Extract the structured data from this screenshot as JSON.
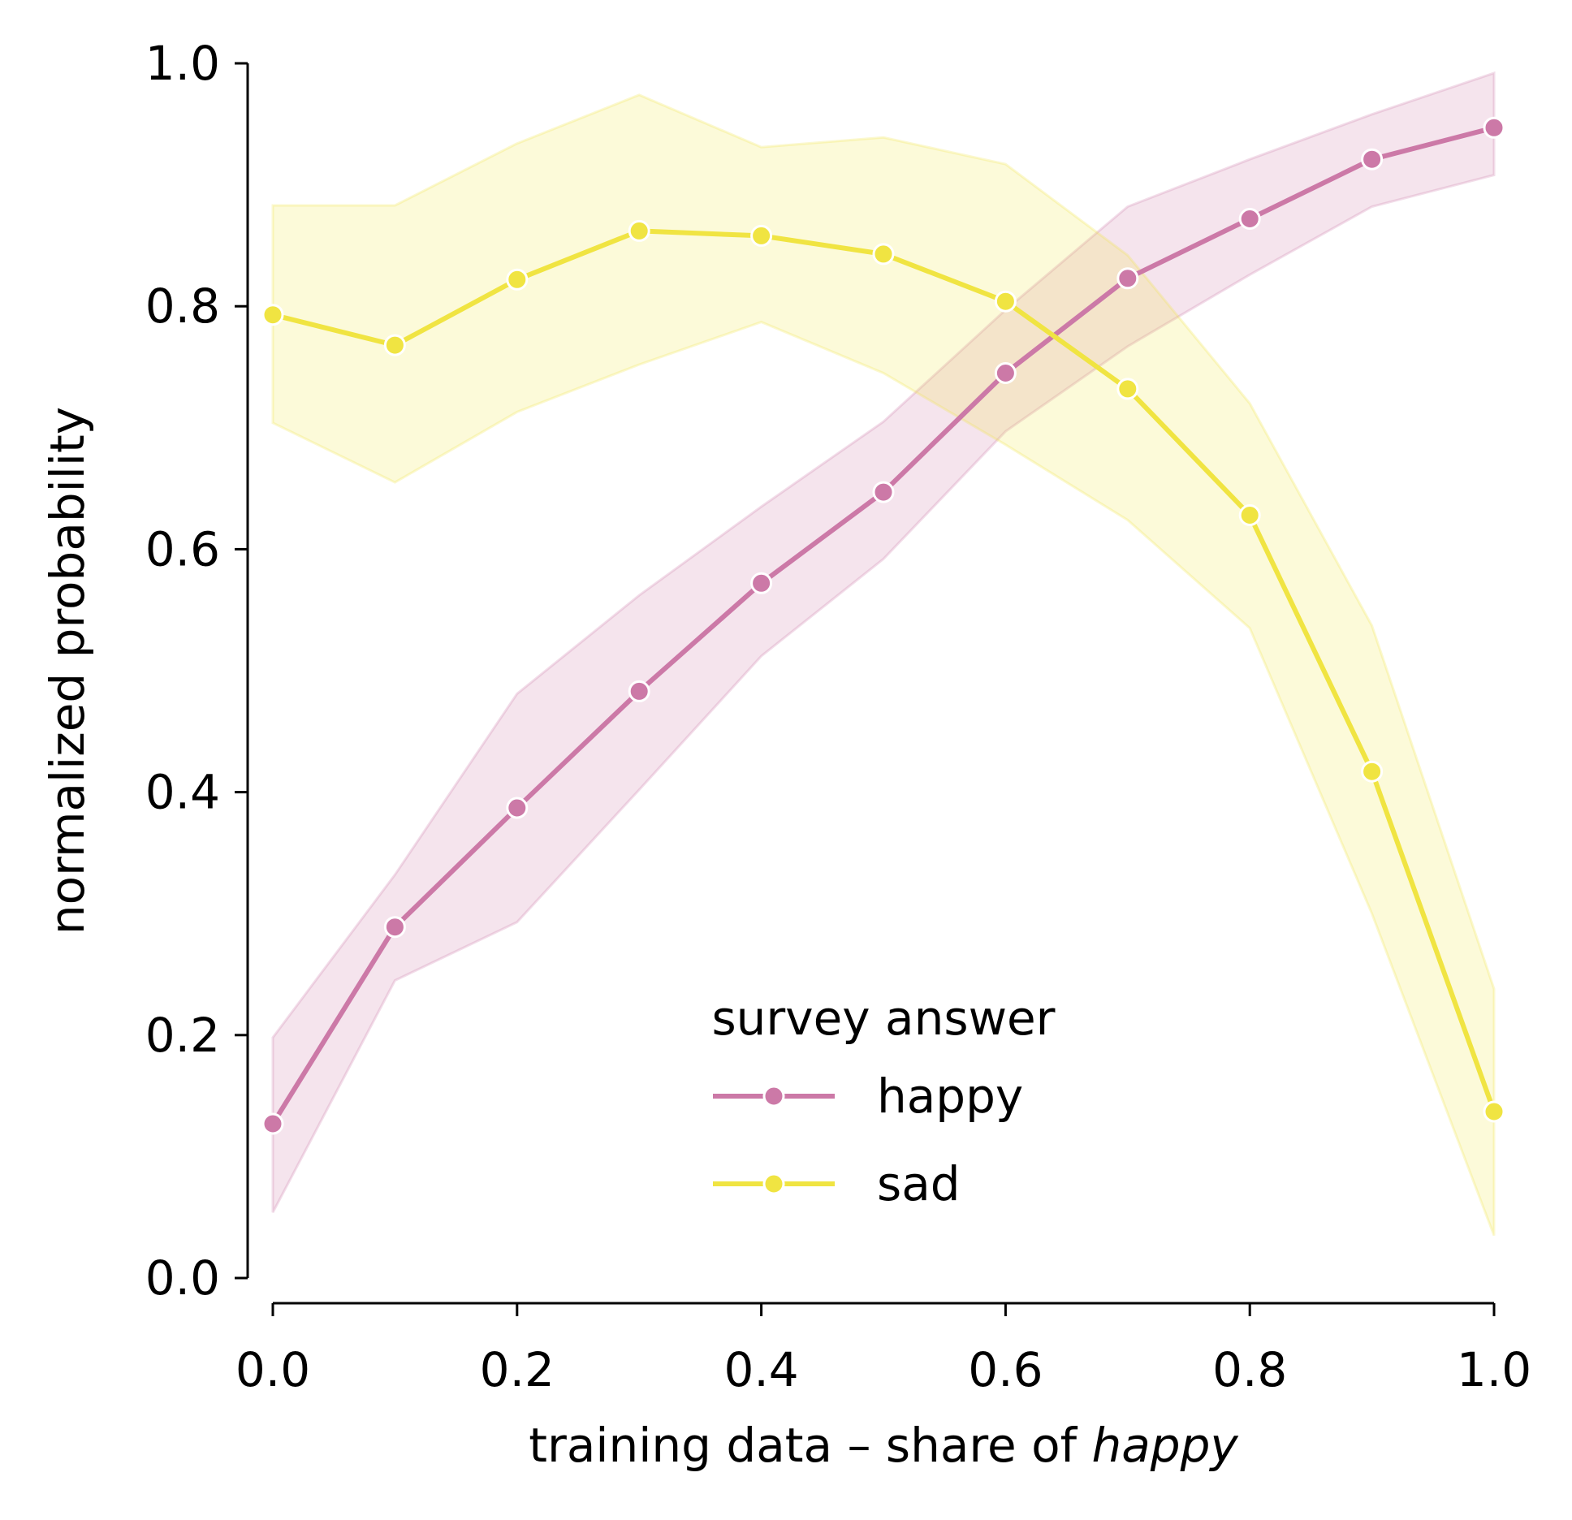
{
  "chart_data": {
    "type": "line",
    "title": "",
    "xlabel": "training data – share of",
    "xlabel_emphasis": "happy",
    "ylabel": "normalized probability",
    "xlim": [
      0.0,
      1.0
    ],
    "ylim": [
      0.0,
      1.0
    ],
    "grid": false,
    "x": [
      0.0,
      0.1,
      0.2,
      0.3,
      0.4,
      0.5,
      0.6,
      0.7,
      0.8,
      0.9,
      1.0
    ],
    "x_ticks": [
      "0.0",
      "0.2",
      "0.4",
      "0.6",
      "0.8",
      "1.0"
    ],
    "y_ticks": [
      "0.0",
      "0.2",
      "0.4",
      "0.6",
      "0.8",
      "1.0"
    ],
    "legend": {
      "title": "survey answer",
      "placement": "lower-center"
    },
    "series": [
      {
        "name": "happy",
        "color": "#cc79a7",
        "band_color": "#cc79a7",
        "values": [
          0.127,
          0.289,
          0.387,
          0.483,
          0.572,
          0.647,
          0.745,
          0.823,
          0.872,
          0.921,
          0.947
        ],
        "ci_lower": [
          0.054,
          0.245,
          0.293,
          0.402,
          0.512,
          0.592,
          0.697,
          0.767,
          0.826,
          0.882,
          0.908
        ],
        "ci_upper": [
          0.198,
          0.332,
          0.481,
          0.562,
          0.635,
          0.705,
          0.797,
          0.882,
          0.921,
          0.958,
          0.992
        ]
      },
      {
        "name": "sad",
        "color": "#f0e442",
        "band_color": "#f0e442",
        "values": [
          0.793,
          0.768,
          0.822,
          0.862,
          0.858,
          0.843,
          0.804,
          0.732,
          0.628,
          0.417,
          0.137
        ],
        "ci_lower": [
          0.704,
          0.655,
          0.713,
          0.752,
          0.787,
          0.745,
          0.686,
          0.624,
          0.535,
          0.3,
          0.035
        ],
        "ci_upper": [
          0.883,
          0.883,
          0.934,
          0.974,
          0.931,
          0.939,
          0.917,
          0.842,
          0.72,
          0.537,
          0.238
        ]
      }
    ]
  }
}
